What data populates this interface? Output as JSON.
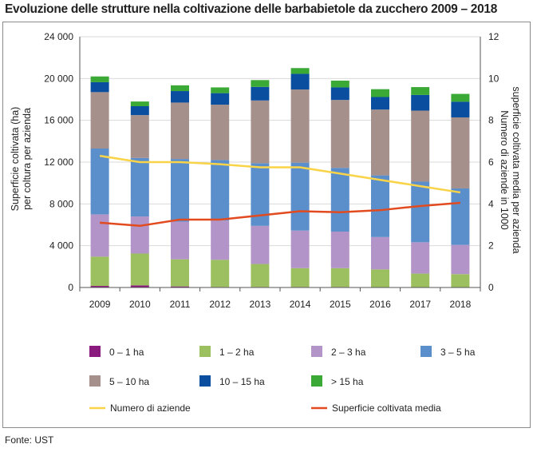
{
  "title": "Evoluzione delle strutture nella coltivazione delle barbabietole da zucchero 2009 – 2018",
  "source": "Fonte: UST",
  "chart_data": {
    "type": "bar",
    "stacked": true,
    "categories": [
      "2009",
      "2010",
      "2011",
      "2012",
      "2013",
      "2014",
      "2015",
      "2016",
      "2017",
      "2018"
    ],
    "ylabel": "Superficie coltivata (ha) per coltura per azienda",
    "ylabel_lines": [
      "Superficie coltivata (ha)",
      "per coltura per azienda"
    ],
    "ylim": [
      0,
      24000
    ],
    "yticks": [
      0,
      4000,
      8000,
      12000,
      16000,
      20000,
      24000
    ],
    "ytick_labels": [
      "0",
      "4 000",
      "8 000",
      "12 000",
      "16 000",
      "20 000",
      "24 000"
    ],
    "y2label": "Numero di aziende in 1000 superficie coltivata media per azienda",
    "y2label_lines": [
      "Numero di aziende in 1000",
      "superficie coltivata media per azienda"
    ],
    "y2lim": [
      0,
      12
    ],
    "y2ticks": [
      0,
      2,
      4,
      6,
      8,
      10,
      12
    ],
    "y2tick_labels": [
      "0",
      "2",
      "4",
      "6",
      "8",
      "10",
      "12"
    ],
    "series": [
      {
        "name": "0 – 1 ha",
        "color": "#8b1a7e",
        "values": [
          150,
          200,
          100,
          50,
          50,
          50,
          50,
          30,
          30,
          30
        ]
      },
      {
        "name": "1 – 2 ha",
        "color": "#9cc05f",
        "values": [
          2800,
          3050,
          2600,
          2600,
          2200,
          1800,
          1800,
          1700,
          1300,
          1250
        ]
      },
      {
        "name": "2 – 3 ha",
        "color": "#b294c8",
        "values": [
          4050,
          3550,
          3600,
          3750,
          3650,
          3600,
          3500,
          3100,
          3000,
          2800
        ]
      },
      {
        "name": "3 – 5 ha",
        "color": "#5b8fcb",
        "values": [
          6300,
          5600,
          6000,
          5800,
          6000,
          6500,
          6100,
          5900,
          5800,
          5400
        ]
      },
      {
        "name": "5 – 10 ha",
        "color": "#a5908c",
        "values": [
          5400,
          4100,
          5400,
          5300,
          6000,
          7000,
          6500,
          6300,
          6800,
          6800
        ]
      },
      {
        "name": "10 – 15 ha",
        "color": "#0a4ea0",
        "values": [
          950,
          850,
          1100,
          1100,
          1300,
          1500,
          1200,
          1200,
          1500,
          1500
        ]
      },
      {
        "name": "> 15 ha",
        "color": "#3aa935",
        "values": [
          550,
          450,
          550,
          550,
          650,
          550,
          650,
          750,
          750,
          750
        ]
      }
    ],
    "lines": [
      {
        "name": "Numero di aziende",
        "color": "#f9d348",
        "axis": "right",
        "values": [
          6.3,
          6.0,
          6.0,
          5.9,
          5.75,
          5.75,
          5.45,
          5.15,
          4.85,
          4.55
        ]
      },
      {
        "name": "Superficie coltivata media",
        "color": "#e24a1f",
        "axis": "right",
        "values": [
          3.1,
          2.95,
          3.25,
          3.25,
          3.45,
          3.65,
          3.6,
          3.7,
          3.9,
          4.05
        ]
      }
    ]
  }
}
